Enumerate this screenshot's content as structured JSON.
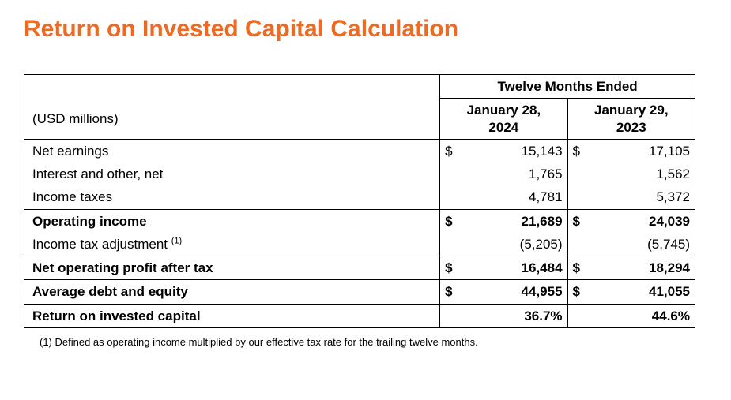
{
  "title": {
    "text": "Return on Invested Capital Calculation",
    "color": "#ec6a24"
  },
  "table": {
    "period_header": "Twelve Months Ended",
    "unit_label": "(USD millions)",
    "columns": [
      {
        "label_line1": "January 28,",
        "label_line2": "2024"
      },
      {
        "label_line1": "January 29,",
        "label_line2": "2023"
      }
    ],
    "rows": [
      {
        "label": "Net earnings",
        "sym": "$",
        "v1": "15,143",
        "v2": "17,105",
        "bold": false,
        "sup": "",
        "topBorder": true
      },
      {
        "label": "Interest and other, net",
        "sym": "",
        "v1": "1,765",
        "v2": "1,562",
        "bold": false,
        "sup": "",
        "topBorder": false
      },
      {
        "label": "Income taxes",
        "sym": "",
        "v1": "4,781",
        "v2": "5,372",
        "bold": false,
        "sup": "",
        "topBorder": false
      },
      {
        "label": "Operating income",
        "sym": "$",
        "v1": "21,689",
        "v2": "24,039",
        "bold": true,
        "sup": "",
        "topBorder": true
      },
      {
        "label": "Income tax adjustment ",
        "sym": "",
        "v1": "(5,205)",
        "v2": "(5,745)",
        "bold": false,
        "sup": "(1)",
        "topBorder": false
      },
      {
        "label": "Net operating profit after tax",
        "sym": "$",
        "v1": "16,484",
        "v2": "18,294",
        "bold": true,
        "sup": "",
        "topBorder": true
      },
      {
        "label": "Average debt and equity",
        "sym": "$",
        "v1": "44,955",
        "v2": "41,055",
        "bold": true,
        "sup": "",
        "topBorder": true
      },
      {
        "label": "Return on invested capital",
        "sym": "",
        "v1": "36.7%",
        "v2": "44.6%",
        "bold": true,
        "sup": "",
        "topBorder": true
      }
    ]
  },
  "footnote": "(1)  Defined as operating income multiplied by our effective tax rate for the trailing twelve months."
}
